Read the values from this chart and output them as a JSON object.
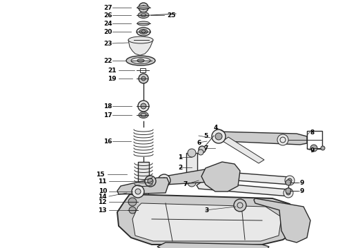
{
  "bg_color": "#ffffff",
  "line_color": "#2a2a2a",
  "fig_width": 4.9,
  "fig_height": 3.6,
  "dpi": 100,
  "label_fs": 6.5,
  "lw_thin": 0.7,
  "lw_med": 1.0,
  "lw_thick": 1.4,
  "part_color": "#e8e8e8",
  "dark_part": "#aaaaaa",
  "mid_part": "#cccccc"
}
